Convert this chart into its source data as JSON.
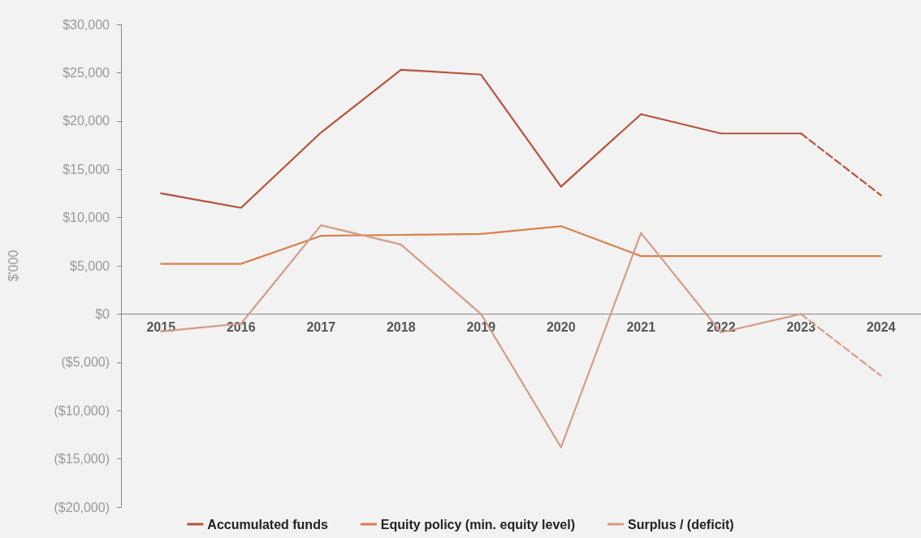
{
  "chart_data": {
    "type": "line",
    "ylabel": "$'000",
    "categories": [
      "2015",
      "2016",
      "2017",
      "2018",
      "2019",
      "2020",
      "2021",
      "2022",
      "2023",
      "2024"
    ],
    "series": [
      {
        "name": "Accumulated funds",
        "color": "#b5533c",
        "values": [
          12500,
          11000,
          18800,
          25300,
          24800,
          13200,
          20700,
          18700,
          18700,
          null
        ]
      },
      {
        "name": "Equity policy (min. equity level)",
        "color": "#d9804a",
        "values": [
          5200,
          5200,
          8100,
          8200,
          8300,
          9100,
          6000,
          6000,
          6000,
          6000
        ]
      },
      {
        "name": "Surplus / (deficit)",
        "color": "#d49c86",
        "values": [
          -1800,
          -1000,
          9200,
          7200,
          0,
          -13800,
          8400,
          -1900,
          0,
          null
        ]
      },
      {
        "color": "#b5533c",
        "line_style": "dashed",
        "values": [
          null,
          null,
          null,
          null,
          null,
          null,
          null,
          null,
          18700,
          12300
        ]
      },
      {
        "color": "#d49c86",
        "line_style": "dashed",
        "values": [
          null,
          null,
          null,
          null,
          null,
          null,
          null,
          null,
          0,
          -6400
        ]
      }
    ],
    "ylim": [
      -20000,
      30000
    ],
    "yticks": [
      {
        "value": -20000,
        "label": "($20,000)"
      },
      {
        "value": -15000,
        "label": "($15,000)"
      },
      {
        "value": -10000,
        "label": "($10,000)"
      },
      {
        "value": -5000,
        "label": "($5,000)"
      },
      {
        "value": 0,
        "label": "$0"
      },
      {
        "value": 5000,
        "label": "$5,000"
      },
      {
        "value": 10000,
        "label": "$10,000"
      },
      {
        "value": 15000,
        "label": "$15,000"
      },
      {
        "value": 20000,
        "label": "$20,000"
      },
      {
        "value": 25000,
        "label": "$25,000"
      },
      {
        "value": 30000,
        "label": "$30,000"
      }
    ],
    "grid": false,
    "legend": "bottom",
    "marker": "none",
    "line_style": "solid"
  }
}
